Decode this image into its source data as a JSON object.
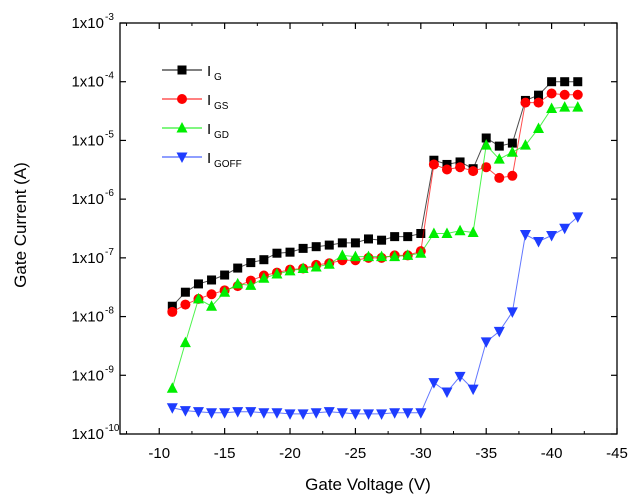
{
  "chart_data": {
    "type": "scatter",
    "title": "",
    "xlabel": "Gate Voltage (V)",
    "ylabel": "Gate Current (A)",
    "x_reversed": true,
    "xlim": [
      -7,
      -45
    ],
    "ylim_exponent": [
      -10,
      -3
    ],
    "y_scale": "log",
    "x_ticks": [
      -10,
      -15,
      -20,
      -25,
      -30,
      -35,
      -40,
      -45
    ],
    "x_tick_labels": [
      "-10",
      "-15",
      "-20",
      "-25",
      "-30",
      "-35",
      "-40",
      "-45"
    ],
    "y_ticks": [
      -10,
      -9,
      -8,
      -7,
      -6,
      -5,
      -4,
      -3
    ],
    "y_tick_labels": [
      "1x10",
      "1x10",
      "1x10",
      "1x10",
      "1x10",
      "1x10",
      "1x10",
      "1x10"
    ],
    "y_tick_exponents": [
      "-10",
      "-9",
      "-8",
      "-7",
      "-6",
      "-5",
      "-4",
      "-3"
    ],
    "legend_position": "top-left",
    "x": [
      -11,
      -12,
      -13,
      -14,
      -15,
      -16,
      -17,
      -18,
      -19,
      -20,
      -21,
      -22,
      -23,
      -24,
      -25,
      -26,
      -27,
      -28,
      -29,
      -30,
      -31,
      -32,
      -33,
      -34,
      -35,
      -36,
      -37,
      -38,
      -39,
      -40,
      -41,
      -42
    ],
    "series": [
      {
        "label_main": "I",
        "label_sub": "G",
        "color": "#000000",
        "marker": "square",
        "values": [
          1.5e-08,
          2.6e-08,
          3.6e-08,
          4.2e-08,
          5.1e-08,
          6.7e-08,
          8.3e-08,
          9.3e-08,
          1.2e-07,
          1.25e-07,
          1.45e-07,
          1.55e-07,
          1.65e-07,
          1.8e-07,
          1.8e-07,
          2.1e-07,
          2e-07,
          2.3e-07,
          2.3e-07,
          2.6e-07,
          4.6e-06,
          3.9e-06,
          4.3e-06,
          3.3e-06,
          1.1e-05,
          8e-06,
          9e-06,
          4.8e-05,
          5.9e-05,
          0.0001,
          0.0001,
          0.0001
        ]
      },
      {
        "label_main": "I",
        "label_sub": "GS",
        "color": "#ff0000",
        "marker": "circle",
        "values": [
          1.2e-08,
          1.6e-08,
          2e-08,
          2.4e-08,
          2.8e-08,
          3.3e-08,
          4.1e-08,
          5e-08,
          5.6e-08,
          6.3e-08,
          6.6e-08,
          7.6e-08,
          8.1e-08,
          9.1e-08,
          9.1e-08,
          1e-07,
          1e-07,
          1.1e-07,
          1.1e-07,
          1.3e-07,
          3.9e-06,
          3.2e-06,
          3.5e-06,
          3e-06,
          3.5e-06,
          2.3e-06,
          2.5e-06,
          4.4e-05,
          4.4e-05,
          6.3e-05,
          6e-05,
          6e-05
        ]
      },
      {
        "label_main": "I",
        "label_sub": "GD",
        "color": "#00ee00",
        "marker": "triangle-up",
        "values": [
          6e-10,
          3.6e-09,
          2e-08,
          1.5e-08,
          2.6e-08,
          3.6e-08,
          3.4e-08,
          4.5e-08,
          5.3e-08,
          6e-08,
          6.6e-08,
          7e-08,
          7.8e-08,
          1.1e-07,
          1.05e-07,
          1.05e-07,
          1.05e-07,
          1.05e-07,
          1.1e-07,
          1.2e-07,
          2.6e-07,
          2.6e-07,
          2.9e-07,
          2.7e-07,
          8.3e-06,
          4.8e-06,
          6.3e-06,
          8.3e-06,
          1.6e-05,
          3.5e-05,
          3.7e-05,
          3.7e-05
        ]
      },
      {
        "label_main": "I",
        "label_sub": "GOFF",
        "color": "#1e3cff",
        "marker": "triangle-down",
        "values": [
          2.8e-10,
          2.5e-10,
          2.4e-10,
          2.3e-10,
          2.3e-10,
          2.4e-10,
          2.4e-10,
          2.3e-10,
          2.3e-10,
          2.2e-10,
          2.2e-10,
          2.3e-10,
          2.4e-10,
          2.3e-10,
          2.2e-10,
          2.2e-10,
          2.2e-10,
          2.3e-10,
          2.3e-10,
          2.3e-10,
          7.5e-10,
          5.2e-10,
          9.6e-10,
          5.8e-10,
          3.7e-09,
          5.6e-09,
          1.2e-08,
          2.5e-07,
          1.9e-07,
          2.4e-07,
          3.2e-07,
          5e-07
        ]
      }
    ]
  }
}
